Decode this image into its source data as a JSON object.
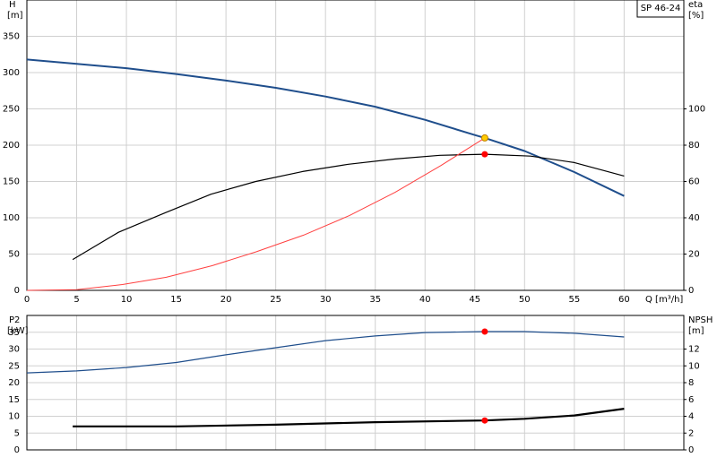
{
  "chart_data": [
    {
      "type": "line",
      "label": "SP 46-24",
      "ylabel": "H",
      "yunit": "[m]",
      "y2label": "eta",
      "y2unit": "[%]",
      "xlabel": "Q [m³/h]",
      "xlim": [
        0,
        66
      ],
      "xticks": [
        0,
        5,
        10,
        15,
        20,
        25,
        30,
        35,
        40,
        45,
        50,
        55,
        60
      ],
      "xtick_labels": true,
      "ylim": [
        0,
        400
      ],
      "yticks": [
        0,
        50,
        100,
        150,
        200,
        250,
        300,
        350
      ],
      "y2lim": [
        0,
        160
      ],
      "y2ticks": [
        0,
        20,
        40,
        60,
        80,
        100
      ],
      "grid": true,
      "series": [
        {
          "color": "#1f4e8c",
          "width": 2,
          "axis": "y",
          "x": [
            0,
            5,
            10,
            15,
            20,
            25,
            30,
            35,
            40,
            45,
            46,
            50,
            55,
            60
          ],
          "values": [
            318,
            312,
            306,
            298,
            289,
            279,
            267,
            253,
            235,
            214,
            210,
            192,
            163,
            130
          ]
        },
        {
          "color": "#000000",
          "width": 1.2,
          "axis": "y2",
          "x": [
            4.6,
            9.2,
            14,
            18.5,
            23,
            27.7,
            32.3,
            37,
            41.5,
            46,
            50.6,
            55,
            60
          ],
          "values": [
            17,
            32,
            43,
            53,
            60,
            65.5,
            69.5,
            72.4,
            74.4,
            75,
            74,
            70.4,
            63
          ]
        },
        {
          "color": "#ff4040",
          "width": 1,
          "axis": "y",
          "x": [
            0,
            5,
            9.6,
            14,
            18.6,
            23,
            27.8,
            32.4,
            37,
            41.6,
            46
          ],
          "values": [
            0,
            1,
            8,
            18,
            34,
            53,
            76,
            103,
            135,
            172,
            210
          ]
        },
        {
          "color": "#ffcc00",
          "marker": true,
          "axis": "y",
          "x": [
            46
          ],
          "values": [
            210
          ]
        },
        {
          "color": "#ff0000",
          "marker": true,
          "axis": "y2",
          "x": [
            46
          ],
          "values": [
            75
          ]
        }
      ]
    },
    {
      "type": "line",
      "ylabel": "P2",
      "yunit": "[kW]",
      "y2label": "NPSH",
      "y2unit": "[m]",
      "xlim": [
        0,
        66
      ],
      "xticks": [
        0,
        5,
        10,
        15,
        20,
        25,
        30,
        35,
        40,
        45,
        50,
        55,
        60
      ],
      "xtick_labels": false,
      "ylim": [
        0,
        40
      ],
      "yticks": [
        0,
        5,
        10,
        15,
        20,
        25,
        30,
        35
      ],
      "y2lim": [
        0,
        16
      ],
      "y2ticks": [
        0,
        2,
        4,
        6,
        8,
        10,
        12
      ],
      "grid": true,
      "series": [
        {
          "color": "#1f4e8c",
          "width": 1.2,
          "axis": "y",
          "x": [
            0,
            5,
            10,
            15,
            20,
            25,
            30,
            35,
            40,
            46,
            50,
            55,
            60
          ],
          "values": [
            22.9,
            23.5,
            24.5,
            26,
            28.3,
            30.4,
            32.5,
            33.9,
            34.9,
            35.2,
            35.2,
            34.7,
            33.6
          ]
        },
        {
          "color": "#000000",
          "width": 2.2,
          "axis": "y2",
          "x": [
            4.6,
            15,
            25,
            35,
            46,
            50,
            55,
            60
          ],
          "values": [
            2.8,
            2.8,
            3.0,
            3.3,
            3.5,
            3.7,
            4.1,
            4.9
          ]
        },
        {
          "color": "#ff0000",
          "marker": true,
          "axis": "y",
          "x": [
            46
          ],
          "values": [
            35.2
          ]
        },
        {
          "color": "#ff0000",
          "marker": true,
          "axis": "y2",
          "x": [
            46
          ],
          "values": [
            3.5
          ]
        }
      ]
    }
  ]
}
